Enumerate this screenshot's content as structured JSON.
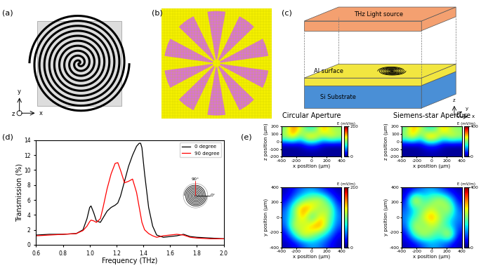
{
  "panel_labels": [
    "(a)",
    "(b)",
    "(c)",
    "(d)",
    "(e)"
  ],
  "diagram_a": {
    "axis_labels": [
      "x",
      "y",
      "z"
    ]
  },
  "diagram_c": {
    "labels": [
      "THz Light source",
      "Al surface",
      "Si Substrate"
    ],
    "axis_labels": [
      "x",
      "y",
      "z"
    ]
  },
  "chart_data": [
    {
      "type": "line",
      "x": [
        0.6,
        0.7,
        0.8,
        0.9,
        0.95,
        0.98,
        1.0,
        1.01,
        1.03,
        1.05,
        1.08,
        1.1,
        1.13,
        1.16,
        1.19,
        1.21,
        1.23,
        1.26,
        1.29,
        1.32,
        1.35,
        1.37,
        1.38,
        1.39,
        1.41,
        1.44,
        1.47,
        1.5,
        1.55,
        1.6,
        1.65,
        1.7,
        1.75,
        1.8,
        1.9,
        2.0
      ],
      "series": [
        {
          "name": "0 degree",
          "color": "#000000",
          "values": [
            1.3,
            1.4,
            1.4,
            1.5,
            2.0,
            3.5,
            5.0,
            5.2,
            4.3,
            3.2,
            3.0,
            3.6,
            4.5,
            5.0,
            5.3,
            5.6,
            6.5,
            8.5,
            10.5,
            12.0,
            13.2,
            13.6,
            13.6,
            13.0,
            9.5,
            5.0,
            2.5,
            1.3,
            1.0,
            1.1,
            1.2,
            1.4,
            1.1,
            1.0,
            0.9,
            0.8
          ]
        },
        {
          "name": "90 degree",
          "color": "#ff0000",
          "values": [
            1.2,
            1.3,
            1.4,
            1.5,
            1.9,
            2.5,
            3.1,
            3.3,
            3.2,
            3.0,
            3.5,
            5.0,
            7.5,
            9.5,
            10.9,
            11.0,
            10.0,
            8.3,
            8.5,
            8.8,
            7.0,
            5.0,
            4.0,
            3.0,
            2.0,
            1.5,
            1.2,
            1.0,
            1.2,
            1.3,
            1.4,
            1.3,
            1.0,
            0.9,
            0.8,
            0.8
          ]
        }
      ],
      "xlim": [
        0.6,
        2.0
      ],
      "ylim": [
        0,
        14
      ],
      "xticks": [
        0.6,
        0.8,
        1.0,
        1.2,
        1.4,
        1.6,
        1.8,
        2.0
      ],
      "yticks": [
        0,
        2,
        4,
        6,
        8,
        10,
        12,
        14
      ],
      "xlabel": "Frequency (THz)",
      "ylabel": "Transmission (%)",
      "legend": "upper right",
      "annotations": [
        "90°",
        "0°"
      ]
    },
    {
      "type": "heatmap",
      "title": "Circular Aperture",
      "xlim": [
        -400,
        400
      ],
      "ylim": [
        -200,
        200
      ],
      "xticks": [
        -400,
        -200,
        0,
        200,
        400
      ],
      "yticks": [
        -200,
        -100,
        0,
        100,
        200
      ],
      "xlabel": "x position (μm)",
      "ylabel": "z position (μm)",
      "cells": [
        [
          5,
          5,
          5,
          5,
          5,
          5,
          5,
          5
        ],
        [
          5,
          5,
          10,
          30,
          30,
          10,
          5,
          5
        ],
        [
          120,
          150,
          90,
          160,
          150,
          100,
          140,
          120
        ],
        [
          100,
          170,
          130,
          80,
          90,
          160,
          120,
          110
        ]
      ],
      "colorbar_range": [
        0,
        210
      ],
      "colorbar_ticks": [
        0,
        210
      ],
      "colorbar_label": "E (mV/m)"
    },
    {
      "type": "heatmap",
      "title": "Siemens-star Aperture",
      "xlim": [
        -400,
        400
      ],
      "ylim": [
        -200,
        200
      ],
      "xticks": [
        -400,
        -200,
        0,
        200,
        400
      ],
      "yticks": [
        -200,
        -100,
        0,
        100,
        200
      ],
      "xlabel": "x position (μm)",
      "ylabel": "z position (μm)",
      "cells": [
        [
          10,
          10,
          10,
          15,
          15,
          10,
          10,
          10
        ],
        [
          10,
          10,
          20,
          60,
          60,
          20,
          10,
          10
        ],
        [
          220,
          280,
          160,
          330,
          300,
          180,
          260,
          230
        ],
        [
          180,
          300,
          240,
          150,
          170,
          300,
          220,
          200
        ]
      ],
      "colorbar_range": [
        0,
        400
      ],
      "colorbar_ticks": [
        0,
        400
      ],
      "colorbar_label": "E (mV/m)"
    },
    {
      "type": "heatmap",
      "xlim": [
        -400,
        400
      ],
      "ylim": [
        -400,
        400
      ],
      "xticks": [
        -400,
        -200,
        0,
        200,
        400
      ],
      "yticks": [
        -400,
        -200,
        0,
        200,
        400
      ],
      "xlabel": "x position (μm)",
      "ylabel": "y position (μm)",
      "cells": [
        [
          10,
          20,
          40,
          60,
          50,
          30,
          10
        ],
        [
          20,
          80,
          150,
          120,
          90,
          60,
          20
        ],
        [
          40,
          140,
          110,
          160,
          170,
          100,
          40
        ],
        [
          50,
          100,
          160,
          60,
          150,
          110,
          50
        ],
        [
          40,
          110,
          170,
          150,
          100,
          130,
          40
        ],
        [
          20,
          60,
          100,
          120,
          140,
          80,
          20
        ],
        [
          10,
          30,
          50,
          60,
          40,
          20,
          10
        ]
      ],
      "colorbar_range": [
        0,
        210
      ],
      "colorbar_ticks": [
        0,
        210
      ],
      "colorbar_label": "E (mV/m)"
    },
    {
      "type": "heatmap",
      "xlim": [
        -400,
        400
      ],
      "ylim": [
        -400,
        400
      ],
      "xticks": [
        -400,
        -200,
        0,
        200,
        400
      ],
      "yticks": [
        -400,
        -200,
        0,
        200,
        400
      ],
      "xlabel": "x position (μm)",
      "ylabel": "y position (μm)",
      "cells": [
        [
          20,
          40,
          80,
          120,
          100,
          60,
          20
        ],
        [
          40,
          180,
          260,
          200,
          160,
          300,
          40
        ],
        [
          80,
          260,
          180,
          240,
          200,
          140,
          80
        ],
        [
          100,
          160,
          240,
          320,
          220,
          160,
          100
        ],
        [
          80,
          140,
          200,
          240,
          180,
          260,
          80
        ],
        [
          40,
          320,
          160,
          200,
          260,
          180,
          40
        ],
        [
          20,
          60,
          100,
          120,
          80,
          40,
          20
        ]
      ],
      "colorbar_range": [
        0,
        400
      ],
      "colorbar_ticks": [
        0,
        400
      ],
      "colorbar_label": "E (mV/m)"
    }
  ]
}
